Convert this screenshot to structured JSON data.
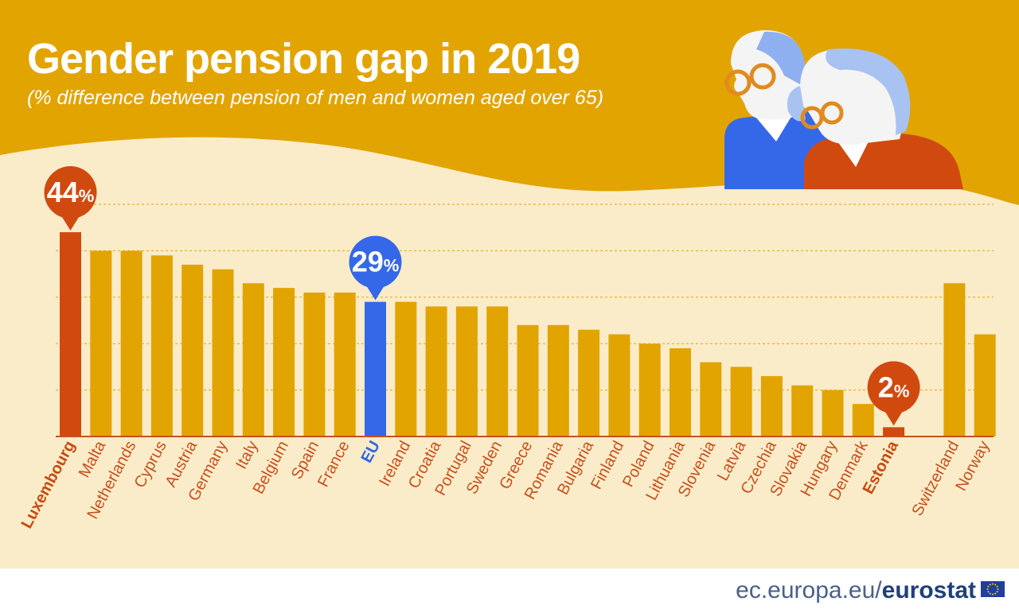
{
  "header": {
    "title": "Gender pension gap in 2019",
    "subtitle": "(% difference between pension of men and women aged over 65)"
  },
  "footer": {
    "site": "ec.europa.eu/",
    "brand": "eurostat"
  },
  "colors": {
    "header_bg": "#e2a400",
    "panel_bg": "#fbecc9",
    "bar_default": "#e2a400",
    "bar_highlight": "#d04a10",
    "bar_eu": "#3568e8",
    "label_color": "#c8501e",
    "axis_line": "#c8501e"
  },
  "illustration": {
    "icon": "elderly-couple-icon"
  },
  "chart_data": {
    "type": "bar",
    "title": "Gender pension gap in 2019",
    "subtitle": "(% difference between pension of men and women aged over 65)",
    "xlabel": "",
    "ylabel": "",
    "ylim": [
      0,
      50
    ],
    "grid": true,
    "categories": [
      "Luxembourg",
      "Malta",
      "Netherlands",
      "Cyprus",
      "Austria",
      "Germany",
      "Italy",
      "Belgium",
      "Spain",
      "France",
      "EU",
      "Ireland",
      "Croatia",
      "Portugal",
      "Sweden",
      "Greece",
      "Romania",
      "Bulgaria",
      "Finland",
      "Poland",
      "Lithuania",
      "Slovenia",
      "Latvia",
      "Czechia",
      "Slovakia",
      "Hungary",
      "Denmark",
      "Estonia",
      "Switzerland",
      "Norway"
    ],
    "values": [
      44,
      40,
      40,
      39,
      37,
      36,
      33,
      32,
      31,
      31,
      29,
      29,
      28,
      28,
      28,
      24,
      24,
      23,
      22,
      20,
      19,
      16,
      15,
      13,
      11,
      10,
      7,
      2,
      33,
      22
    ],
    "highlights": {
      "max": {
        "category": "Luxembourg",
        "label_num": "44",
        "label_pct": "%"
      },
      "eu": {
        "category": "EU",
        "label_num": "29",
        "label_pct": "%"
      },
      "min": {
        "category": "Estonia",
        "label_num": "2",
        "label_pct": "%"
      }
    }
  }
}
